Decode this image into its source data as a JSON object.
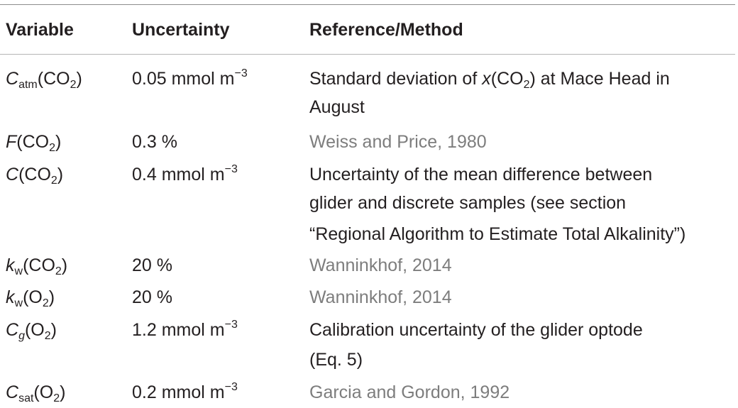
{
  "headers": {
    "variable": "Variable",
    "uncertainty": "Uncertainty",
    "reference": "Reference/Method"
  },
  "rows": [
    {
      "var": {
        "sym": "C",
        "sub": "atm",
        "gas": "CO",
        "gas_sub": "2"
      },
      "unc": {
        "value": "0.05 mmol m",
        "sup": "−3"
      },
      "ref": {
        "line1_pre": "Standard deviation of ",
        "line1_sym": "x",
        "line1_gas": "CO",
        "line1_gas_sub": "2",
        "line1_post": ") at Mace Head in",
        "line2": "August"
      }
    },
    {
      "var": {
        "sym": "F",
        "gas": "CO",
        "gas_sub": "2"
      },
      "unc": {
        "value": "0.3 %"
      },
      "ref": {
        "text": "Weiss and Price, 1980"
      }
    },
    {
      "var": {
        "sym": "C",
        "gas": "CO",
        "gas_sub": "2"
      },
      "unc": {
        "value": "0.4 mmol m",
        "sup": "−3"
      },
      "ref": {
        "line1": "Uncertainty of the mean difference between",
        "line2": "glider and discrete samples (see section",
        "line3": "“Regional Algorithm to Estimate Total Alkalinity”)"
      }
    },
    {
      "var": {
        "sym": "k",
        "sub": "w",
        "gas": "CO",
        "gas_sub": "2"
      },
      "unc": {
        "value": "20 %"
      },
      "ref": {
        "text": "Wanninkhof, 2014"
      }
    },
    {
      "var": {
        "sym": "k",
        "sub": "w",
        "gas": "O",
        "gas_sub": "2"
      },
      "unc": {
        "value": "20 %"
      },
      "ref": {
        "text": "Wanninkhof, 2014"
      }
    },
    {
      "var": {
        "sym": "C",
        "sub": "g",
        "gas": "O",
        "gas_sub": "2"
      },
      "unc": {
        "value": "1.2 mmol m",
        "sup": "−3"
      },
      "ref": {
        "line1": "Calibration uncertainty of the glider optode",
        "line2": "(Eq. 5)"
      }
    },
    {
      "var": {
        "sym": "C",
        "sub": "sat",
        "gas": "O",
        "gas_sub": "2"
      },
      "unc": {
        "value": "0.2 mmol m",
        "sup": "−3"
      },
      "ref": {
        "text": "Garcia and Gordon, 1992"
      }
    }
  ],
  "colors": {
    "text": "#231f20",
    "reference_link": "#7d7d7d",
    "rule": "#b5b5b5"
  }
}
